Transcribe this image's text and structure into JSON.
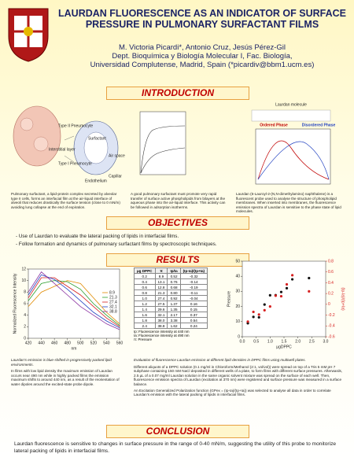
{
  "header": {
    "title": "LAURDAN FLUORESCENCE AS AN INDICATOR OF SURFACE PRESSURE IN PULMONARY SURFACTANT FILMS",
    "authors": "M. Victoria Picardi*, Antonio Cruz, Jesús Pérez-Gil",
    "affiliation": [
      "Dept. Bioquímica y Biología Molecular I, Fac. Biología,",
      "Universidad Complutense, Madrid, Spain (*picardiv@bbm1.ucm.es)"
    ]
  },
  "sections": {
    "introduction": "INTRODUCTION",
    "objectives": "OBJECTIVES",
    "results": "RESULTS",
    "conclusion": "CONCLUSION"
  },
  "introduction": {
    "diagram_labels": [
      "Type II Pneumocyte",
      "Interstitial layer",
      "Type I Pneumocyte",
      "Surfactant",
      "Air space",
      "Endothelium",
      "Capillar"
    ],
    "laurdan_labels": [
      "Laurdan molecule",
      "Ordered Phase",
      "Disordered Phase"
    ],
    "captions": [
      "Pulmonary surfactant, a lipid-protein complex secreted by alveolar type II cells, forms an interfacial film at the air-liquid interface of alveoli that reduces drastically the surface tension (close to 0 mN/m) avoiding lung collapse at the end of expiration.",
      "A good pulmonary surfactant must promote very rapid transfer of surface active phospholipids from bilayers at the aqueous phase into the air-liquid interface. This activity can be followed in adsorption isotherms.",
      "Laurdan (6-Lauroyl-2-(N,N-dimethylamino) naphthalene) is a fluorescent probe used to analyse the structure of phospholipid membranes. When inserted into membranes, the fluorescence emission spectra of Laurdan is sensitive to the phase state of lipid molecules."
    ]
  },
  "objectives": [
    "- Use of Laurdan to evaluate the lateral packing of lipids in interfacial films.",
    "- Follow formation and dynamics of pulmonary surfactant films by spectroscopic techniques."
  ],
  "results": {
    "left_captions": [
      "Laurdan's emission is blue-shifted in progressively packed lipid environments.",
      "In films with low lipid density the maximum emission of Laurdan occurs near 490 nm while in highly packed films the emission maximum shifts to around 440 nm, as a result of the reorientation of water dipoles around the excited-state probe dipole."
    ],
    "right_captions": [
      "Evaluation of fluorescence Laurdan emission at different lipid densities in DPPC films using multiwell plates.",
      "Different aliquots of a DPPC solution (0.1 mg/ml in Chloroform/Methanol (2:1, vol/vol)) were spread on top of a Tris 5 mM pH 7 subphase containing 150 mM NaCl deposited in different wells of a plate, to form films with different surface pressures. Afterwards, 2.5 µL of a 0.07 mg/ml Laurdan solution in the same organic solvent mixture was spread on the surface of each well. Then, fluorescence emission spectra of Laurdan (excitation at 370 nm) were registered and surface pressure was measured in a surface balance.",
      "An Excitation Generalized Polarization function (GPex = (Ip-Ia)/(Ip+Ia)) was selected to analyse all data in order to correlate Laurdan's emission with the lateral packing of lipids in interfacial films."
    ]
  },
  "table": {
    "header": [
      "µg DPPC",
      "π",
      "Ip/Ia",
      "(Ip-Ia)/(Ip+Ia)"
    ],
    "rows": [
      [
        "0.2",
        "8.9",
        "0.52",
        "-0.32"
      ],
      [
        "0.4",
        "13.1",
        "0.76",
        "-0.14"
      ],
      [
        "0.6",
        "12.8",
        "0.68",
        "-0.19"
      ],
      [
        "0.8",
        "21.3",
        "0.80",
        "-0.11"
      ],
      [
        "1.0",
        "27.4",
        "0.92",
        "-0.04"
      ],
      [
        "1.2",
        "27.5",
        "1.37",
        "0.16"
      ],
      [
        "1.4",
        "29.6",
        "1.35",
        "0.15"
      ],
      [
        "1.6",
        "32.1",
        "2.17",
        "0.37"
      ],
      [
        "1.8",
        "38.0",
        "3.38",
        "0.54"
      ],
      [
        "2.4",
        "38.8",
        "1.62",
        "0.24"
      ]
    ],
    "notes": [
      "Ip: Fluorescence intensity at 440 nm",
      "Ia: Fluorescence intensity at 490 nm",
      "π: Pressure"
    ]
  },
  "conclusion": "Laurdan fluorescence is sensitive to changes in surface pressure in the range of 0-40 mN/m, suggesting the utility of this probe to monitorize lateral packing of lipids in interfacial films.",
  "chart_data": [
    {
      "type": "line",
      "xlabel": "nm",
      "ylabel": "Normalized Fluorescence Intensity",
      "x": [
        420,
        440,
        460,
        480,
        500,
        520,
        540,
        560
      ],
      "xlim": [
        420,
        560
      ],
      "xticks": [
        420,
        440,
        460,
        480,
        500,
        520,
        540,
        560
      ],
      "ylim": [
        0,
        12
      ],
      "yticks": [
        0,
        2,
        4,
        6,
        8,
        10,
        12
      ],
      "series": [
        {
          "name": "8.9",
          "color": "#e08a00",
          "values": [
            5.5,
            8.0,
            9.0,
            10.0,
            9.5,
            7.0,
            4.5,
            2.5
          ]
        },
        {
          "name": "21.3",
          "color": "#2a9d2a",
          "values": [
            6.5,
            9.5,
            10.0,
            9.8,
            8.5,
            6.0,
            4.0,
            2.2
          ]
        },
        {
          "name": "27.4",
          "color": "#d62020",
          "values": [
            7.0,
            10.5,
            10.5,
            9.0,
            7.5,
            5.5,
            3.5,
            2.0
          ]
        },
        {
          "name": "32.1",
          "color": "#2040c0",
          "values": [
            7.5,
            11.0,
            10.2,
            8.5,
            6.5,
            4.5,
            3.0,
            1.8
          ]
        },
        {
          "name": "38.8",
          "color": "#8a30a0",
          "values": [
            8.0,
            11.5,
            9.5,
            7.5,
            5.5,
            4.0,
            2.5,
            1.5
          ]
        }
      ]
    },
    {
      "type": "scatter",
      "xlabel": "µgDPPC",
      "ylabel": "Pressure",
      "y2label": "(Ip-Ia)/(Ip+Ia)",
      "x": [
        0.2,
        0.4,
        0.6,
        0.8,
        1.0,
        1.2,
        1.4,
        1.6,
        1.8,
        2.4
      ],
      "xlim": [
        0,
        3
      ],
      "xticks": [
        {
          "value": 0,
          "label": "0.0"
        },
        {
          "value": 0.5,
          "label": "0.5"
        },
        {
          "value": 1,
          "label": "1.0"
        },
        {
          "value": 1.5,
          "label": "1.5"
        },
        {
          "value": 2,
          "label": "2.0"
        },
        {
          "value": 2.5,
          "label": "2.5"
        },
        {
          "value": 3,
          "label": "3.0"
        }
      ],
      "ylim": [
        0,
        50
      ],
      "yticks": [
        0,
        10,
        20,
        30,
        40,
        50
      ],
      "y2lim": [
        -0.6,
        0.8
      ],
      "y2ticks": [
        -0.6,
        -0.4,
        -0.2,
        0,
        0.2,
        0.4,
        0.6,
        0.8
      ],
      "series": [
        {
          "color": "#111111",
          "values": [
            8.9,
            13.1,
            12.8,
            21.3,
            27.4,
            27.5,
            29.6,
            32.1,
            38.0,
            38.8
          ]
        },
        {
          "color": "#d62020",
          "axis": "y2",
          "values": [
            -0.32,
            -0.14,
            -0.19,
            -0.11,
            -0.04,
            0.16,
            0.15,
            0.37,
            0.54,
            0.24
          ]
        }
      ]
    }
  ]
}
